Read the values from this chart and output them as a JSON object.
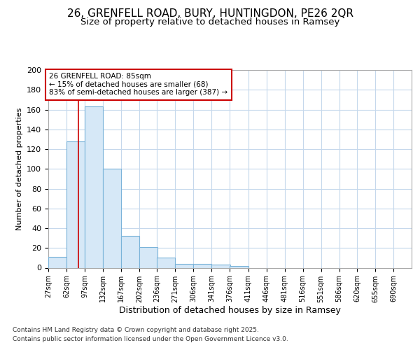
{
  "title1": "26, GRENFELL ROAD, BURY, HUNTINGDON, PE26 2QR",
  "title2": "Size of property relative to detached houses in Ramsey",
  "xlabel": "Distribution of detached houses by size in Ramsey",
  "ylabel": "Number of detached properties",
  "bins": [
    27,
    62,
    97,
    132,
    167,
    202,
    236,
    271,
    306,
    341,
    376,
    411,
    446,
    481,
    516,
    551,
    586,
    620,
    655,
    690,
    725
  ],
  "counts": [
    11,
    128,
    163,
    100,
    32,
    21,
    10,
    4,
    4,
    3,
    2,
    0,
    0,
    0,
    0,
    0,
    0,
    0,
    0,
    0
  ],
  "bar_color": "#d6e8f7",
  "bar_edge_color": "#7ab3d9",
  "red_line_x": 85,
  "annotation_line1": "26 GRENFELL ROAD: 85sqm",
  "annotation_line2": "← 15% of detached houses are smaller (68)",
  "annotation_line3": "83% of semi-detached houses are larger (387) →",
  "annotation_box_color": "#ffffff",
  "annotation_border_color": "#cc0000",
  "ylim": [
    0,
    200
  ],
  "yticks": [
    0,
    20,
    40,
    60,
    80,
    100,
    120,
    140,
    160,
    180,
    200
  ],
  "footer1": "Contains HM Land Registry data © Crown copyright and database right 2025.",
  "footer2": "Contains public sector information licensed under the Open Government Licence v3.0.",
  "bg_color": "#ffffff",
  "grid_color": "#c5d8ec",
  "title_fontsize": 11,
  "subtitle_fontsize": 9.5
}
